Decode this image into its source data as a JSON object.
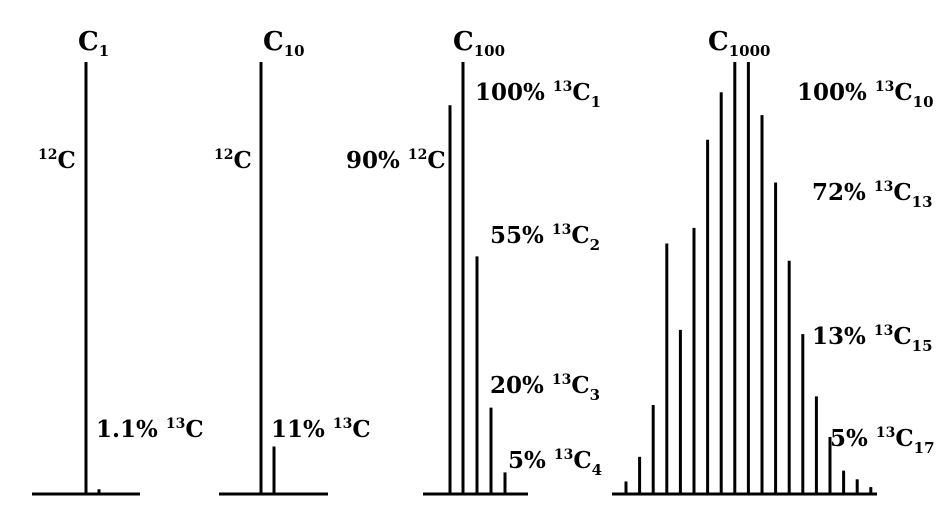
{
  "panels": [
    {
      "title": "C",
      "title_sub": "1",
      "labels": [
        {
          "parts": [
            {
              "t": "sup",
              "v": "12"
            },
            {
              "t": "txt",
              "v": "C"
            }
          ]
        },
        {
          "parts": [
            {
              "t": "txt",
              "v": "1.1% "
            },
            {
              "t": "sup",
              "v": "13"
            },
            {
              "t": "txt",
              "v": "C"
            }
          ]
        }
      ],
      "peaks": [
        100,
        1.1
      ]
    },
    {
      "title": "C",
      "title_sub": "10",
      "labels": [
        {
          "parts": [
            {
              "t": "sup",
              "v": "12"
            },
            {
              "t": "txt",
              "v": "C"
            }
          ]
        },
        {
          "parts": [
            {
              "t": "txt",
              "v": "11% "
            },
            {
              "t": "sup",
              "v": "13"
            },
            {
              "t": "txt",
              "v": "C"
            }
          ]
        }
      ],
      "peaks": [
        100,
        11
      ]
    },
    {
      "title": "C",
      "title_sub": "100",
      "labels": [
        {
          "parts": [
            {
              "t": "txt",
              "v": "90% "
            },
            {
              "t": "sup",
              "v": "12"
            },
            {
              "t": "txt",
              "v": "C"
            }
          ]
        },
        {
          "parts": [
            {
              "t": "txt",
              "v": "100% "
            },
            {
              "t": "sup",
              "v": "13"
            },
            {
              "t": "txt",
              "v": "C"
            },
            {
              "t": "sub",
              "v": "1"
            }
          ]
        },
        {
          "parts": [
            {
              "t": "txt",
              "v": "55% "
            },
            {
              "t": "sup",
              "v": "13"
            },
            {
              "t": "txt",
              "v": "C"
            },
            {
              "t": "sub",
              "v": "2"
            }
          ]
        },
        {
          "parts": [
            {
              "t": "txt",
              "v": "20% "
            },
            {
              "t": "sup",
              "v": "13"
            },
            {
              "t": "txt",
              "v": "C"
            },
            {
              "t": "sub",
              "v": "3"
            }
          ]
        },
        {
          "parts": [
            {
              "t": "txt",
              "v": "5% "
            },
            {
              "t": "sup",
              "v": "13"
            },
            {
              "t": "txt",
              "v": "C"
            },
            {
              "t": "sub",
              "v": "4"
            }
          ]
        }
      ],
      "peaks": [
        90,
        100,
        55,
        20,
        5
      ]
    },
    {
      "title": "C",
      "title_sub": "1000",
      "labels": [
        {
          "parts": [
            {
              "t": "txt",
              "v": "100% "
            },
            {
              "t": "sup",
              "v": "13"
            },
            {
              "t": "txt",
              "v": "C"
            },
            {
              "t": "sub",
              "v": "10"
            }
          ]
        },
        {
          "parts": [
            {
              "t": "txt",
              "v": "72% "
            },
            {
              "t": "sup",
              "v": "13"
            },
            {
              "t": "txt",
              "v": "C"
            },
            {
              "t": "sub",
              "v": "13"
            }
          ]
        },
        {
          "parts": [
            {
              "t": "txt",
              "v": "13% "
            },
            {
              "t": "sup",
              "v": "13"
            },
            {
              "t": "txt",
              "v": "C"
            },
            {
              "t": "sub",
              "v": "15"
            }
          ]
        },
        {
          "parts": [
            {
              "t": "txt",
              "v": "5% "
            },
            {
              "t": "sup",
              "v": "13"
            },
            {
              "t": "txt",
              "v": "C"
            },
            {
              "t": "sub",
              "v": "17"
            }
          ]
        }
      ],
      "peaks": [
        2.9,
        8.6,
        20.6,
        58,
        38,
        61.6,
        82,
        93,
        100,
        100,
        87.7,
        72.1,
        54,
        37,
        22.6,
        13.2,
        5.4,
        3.4,
        1.6
      ]
    }
  ],
  "style": {
    "ink": "#000000",
    "background": "#ffffff"
  }
}
